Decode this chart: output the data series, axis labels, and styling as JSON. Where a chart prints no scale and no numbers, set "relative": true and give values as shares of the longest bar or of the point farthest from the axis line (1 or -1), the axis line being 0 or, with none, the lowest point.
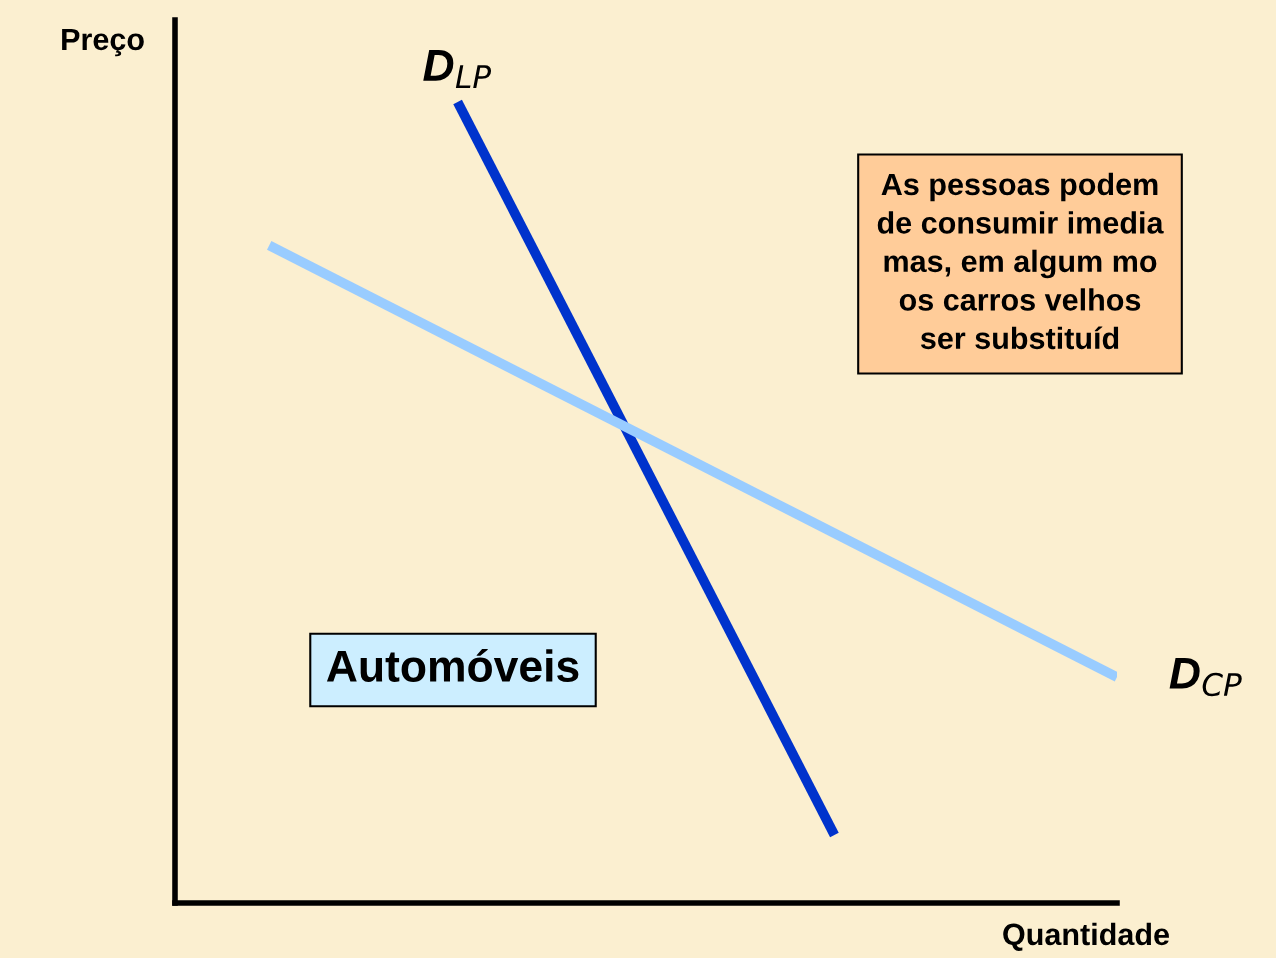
{
  "chart_data": {
    "type": "line",
    "relative": true,
    "xlabel": "Quantidade",
    "ylabel": "Preço",
    "categories": [
      null,
      null,
      null,
      null,
      null,
      null,
      null,
      null,
      null,
      null,
      null,
      null,
      null,
      null,
      null,
      null,
      null,
      null,
      null,
      null,
      null
    ],
    "series": [
      {
        "name": "D$_{LP}$",
        "color": "#0033cc",
        "values": [
          null,
          null,
          null,
          null,
          null,
          null,
          1,
          null,
          null,
          null,
          null,
          null,
          null,
          null,
          0.085,
          null,
          null,
          null,
          null,
          null,
          null
        ]
      },
      {
        "name": "D$_{CP}$",
        "color": "#99ccff",
        "values": [
          null,
          null,
          0.821,
          null,
          null,
          null,
          null,
          null,
          null,
          null,
          null,
          null,
          null,
          null,
          null,
          null,
          null,
          null,
          null,
          null,
          0.282
        ]
      }
    ],
    "annotations": [
      "Automóveis",
      "As pessoas podem\nde consumir imedia\nmas, em algum mo\nos carros velhos\nser substituíd"
    ],
    "legend": false
  }
}
